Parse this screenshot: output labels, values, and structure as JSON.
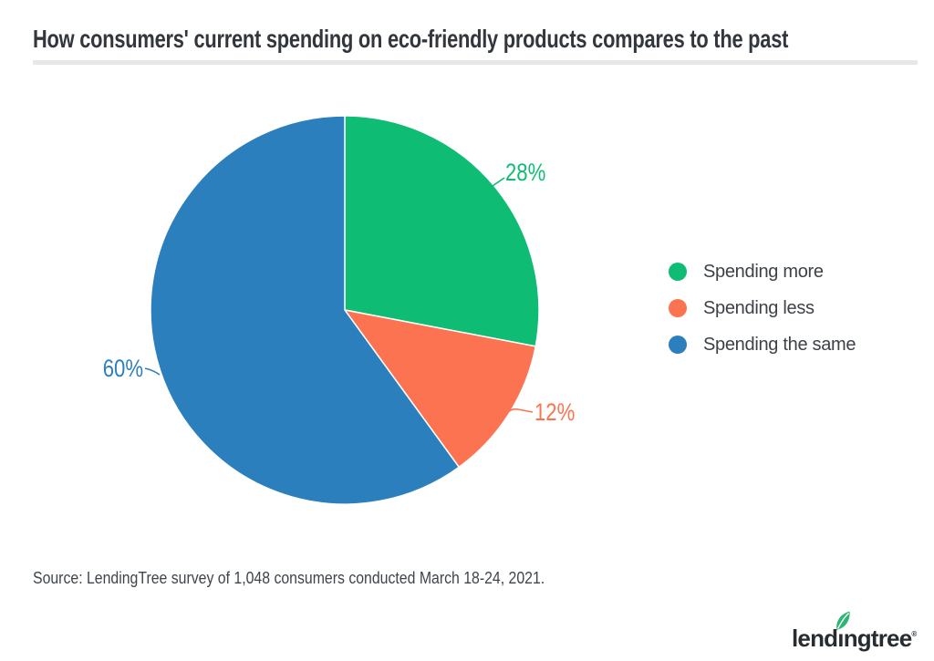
{
  "chart_data": {
    "type": "pie",
    "title": "How consumers' current spending on eco-friendly products compares to the past",
    "slices": [
      {
        "id": "spending-more",
        "label": "Spending more",
        "value": 28,
        "pct_label": "28%",
        "color": "#0ebc74"
      },
      {
        "id": "spending-less",
        "label": "Spending less",
        "value": 12,
        "pct_label": "12%",
        "color": "#fb7350"
      },
      {
        "id": "spending-the-same",
        "label": "Spending the same",
        "value": 60,
        "pct_label": "60%",
        "color": "#2b7fbc"
      }
    ],
    "legend_position": "right",
    "start_angle_deg": 0,
    "direction": "clockwise",
    "source": "Source: LendingTree survey of 1,048 consumers conducted March 18-24, 2021."
  },
  "logo": {
    "pre": "lend",
    "dotless_i": "ı",
    "post": "ngtree",
    "registered": "®",
    "full_text": "lendingtree",
    "leaf_color": "#2db574",
    "text_color": "#272c31"
  }
}
